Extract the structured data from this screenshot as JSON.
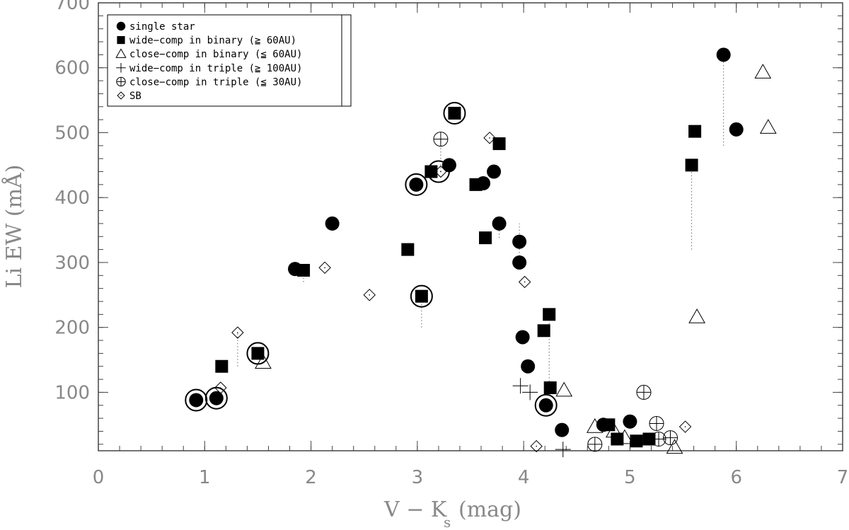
{
  "chart_data": {
    "type": "scatter",
    "xlabel": "V − K",
    "xlabel_sub": "s",
    "xlabel_unit": "(mag)",
    "ylabel": "Li EW (mÅ)",
    "xlim": [
      0,
      7
    ],
    "ylim": [
      10,
      700
    ],
    "xticks": [
      0,
      1,
      2,
      3,
      4,
      5,
      6,
      7
    ],
    "yticks": [
      100,
      200,
      300,
      400,
      500,
      600,
      700
    ],
    "grid": false,
    "legend_position": "top-left",
    "legend": [
      {
        "marker": "filled-circle",
        "label": "single star"
      },
      {
        "marker": "filled-square",
        "label": "wide−comp in binary (≧ 60AU)"
      },
      {
        "marker": "triangle",
        "label": "close−comp in binary (≦ 60AU)"
      },
      {
        "marker": "plus",
        "label": "wide−comp in triple (≧ 100AU)"
      },
      {
        "marker": "circle-plus",
        "label": "close−comp in triple (≦ 30AU)"
      },
      {
        "marker": "diamond",
        "label": "SB"
      }
    ],
    "series": [
      {
        "name": "single star",
        "marker": "filled-circle",
        "points": [
          [
            0.92,
            88
          ],
          [
            1.11,
            91
          ],
          [
            1.85,
            290
          ],
          [
            2.2,
            360
          ],
          [
            2.99,
            420
          ],
          [
            3.3,
            450
          ],
          [
            3.62,
            422
          ],
          [
            3.72,
            440
          ],
          [
            3.77,
            360
          ],
          [
            3.96,
            332
          ],
          [
            3.96,
            300
          ],
          [
            3.99,
            185
          ],
          [
            4.04,
            140
          ],
          [
            4.21,
            80
          ],
          [
            4.36,
            42
          ],
          [
            4.75,
            50
          ],
          [
            5.0,
            55
          ],
          [
            5.88,
            620
          ],
          [
            6.0,
            505
          ]
        ]
      },
      {
        "name": "wide−comp in binary (≧ 60AU)",
        "marker": "filled-square",
        "points": [
          [
            1.16,
            140
          ],
          [
            1.5,
            160
          ],
          [
            1.93,
            288
          ],
          [
            2.91,
            320
          ],
          [
            3.04,
            248
          ],
          [
            3.13,
            440
          ],
          [
            3.35,
            530
          ],
          [
            3.55,
            420
          ],
          [
            3.64,
            338
          ],
          [
            3.77,
            483
          ],
          [
            4.19,
            195
          ],
          [
            4.24,
            220
          ],
          [
            4.25,
            107
          ],
          [
            4.8,
            50
          ],
          [
            4.88,
            28
          ],
          [
            5.06,
            25
          ],
          [
            5.18,
            28
          ],
          [
            5.58,
            450
          ],
          [
            5.61,
            502
          ]
        ]
      },
      {
        "name": "close−comp in binary (≦ 60AU)",
        "marker": "triangle",
        "points": [
          [
            1.55,
            146
          ],
          [
            4.38,
            103
          ],
          [
            4.67,
            47
          ],
          [
            4.85,
            40
          ],
          [
            4.95,
            30
          ],
          [
            5.42,
            15
          ],
          [
            5.63,
            216
          ],
          [
            6.25,
            593
          ],
          [
            6.3,
            508
          ]
        ]
      },
      {
        "name": "wide−comp in triple (≧ 100AU)",
        "marker": "plus",
        "points": [
          [
            3.97,
            110
          ],
          [
            4.06,
            100
          ],
          [
            4.37,
            12
          ]
        ]
      },
      {
        "name": "close−comp in triple (≦ 30AU)",
        "marker": "circle-plus",
        "points": [
          [
            3.22,
            490
          ],
          [
            4.67,
            20
          ],
          [
            5.13,
            100
          ],
          [
            5.25,
            52
          ],
          [
            5.27,
            28
          ],
          [
            5.38,
            30
          ]
        ]
      },
      {
        "name": "SB",
        "marker": "diamond",
        "points": [
          [
            1.15,
            107
          ],
          [
            1.31,
            192
          ],
          [
            2.13,
            292
          ],
          [
            2.55,
            250
          ],
          [
            3.22,
            440
          ],
          [
            3.68,
            492
          ],
          [
            4.01,
            270
          ],
          [
            4.12,
            17
          ],
          [
            4.8,
            50
          ],
          [
            5.52,
            47
          ]
        ]
      }
    ],
    "highlight_rings": [
      [
        0.92,
        88
      ],
      [
        1.11,
        91
      ],
      [
        1.5,
        160
      ],
      [
        2.99,
        420
      ],
      [
        3.04,
        248
      ],
      [
        3.2,
        440
      ],
      [
        3.35,
        530
      ],
      [
        4.21,
        80
      ]
    ],
    "dotted_connectors": [
      {
        "x": 1.31,
        "y1": 140,
        "y2": 192
      },
      {
        "x": 1.93,
        "y1": 270,
        "y2": 290
      },
      {
        "x": 3.04,
        "y1": 200,
        "y2": 250
      },
      {
        "x": 3.22,
        "y1": 440,
        "y2": 490
      },
      {
        "x": 3.77,
        "y1": 338,
        "y2": 360
      },
      {
        "x": 3.96,
        "y1": 300,
        "y2": 360
      },
      {
        "x": 4.24,
        "y1": 107,
        "y2": 220
      },
      {
        "x": 5.58,
        "y1": 320,
        "y2": 450
      },
      {
        "x": 5.88,
        "y1": 480,
        "y2": 620
      }
    ]
  }
}
